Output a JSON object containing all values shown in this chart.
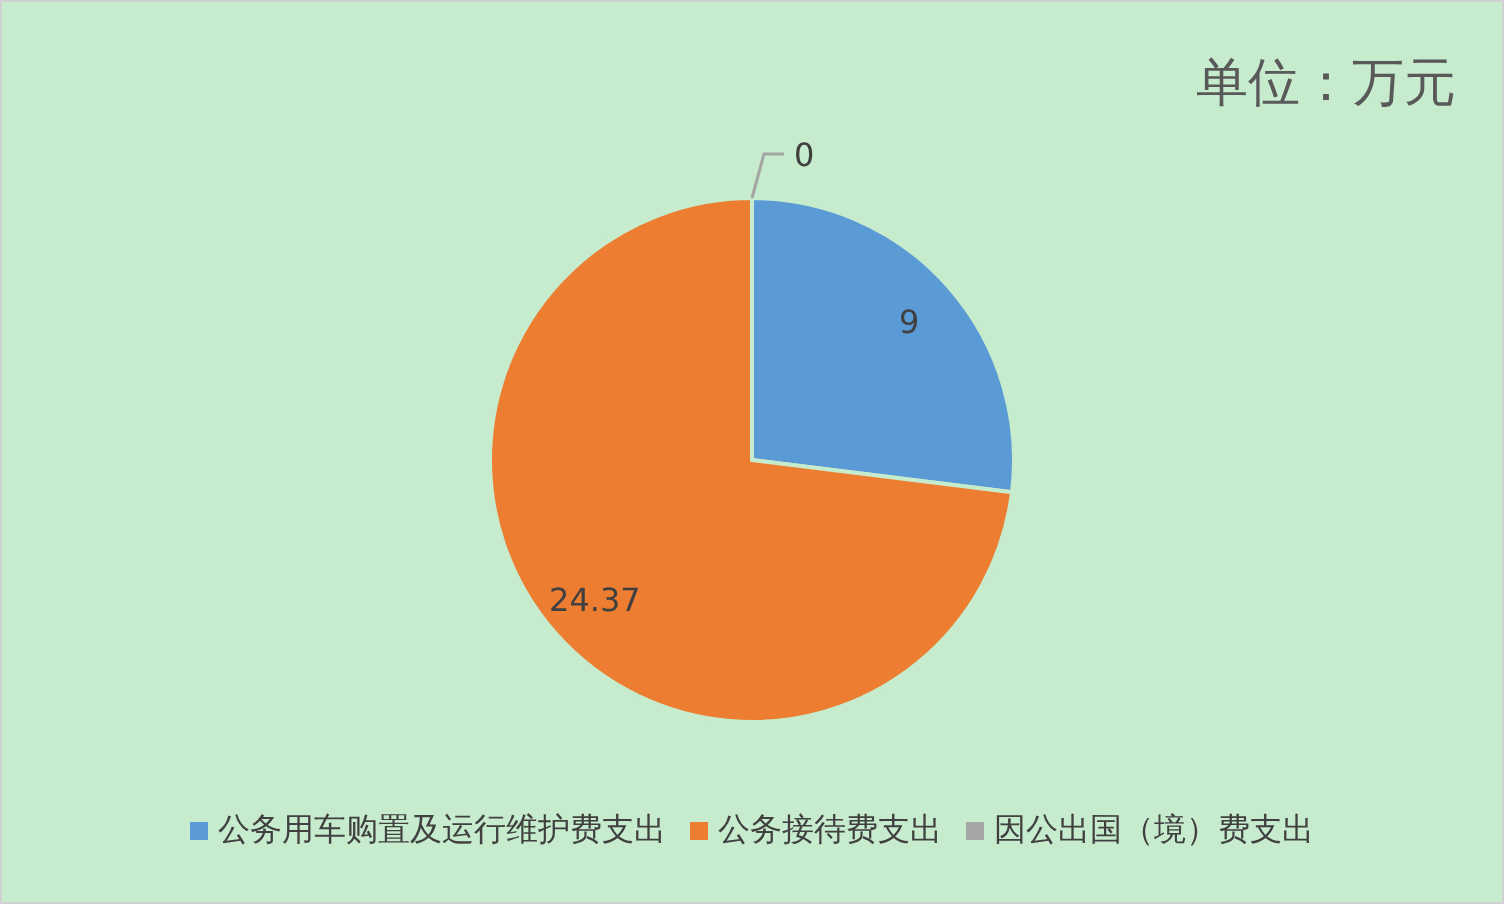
{
  "chart_data": {
    "type": "pie",
    "title": "单位：万元",
    "categories": [
      "公务用车购置及运行维护费支出",
      "公务接待费支出",
      "因公出国（境）费支出"
    ],
    "values": [
      9,
      24.37,
      0
    ],
    "colors": [
      "#5b9bd5",
      "#ed7d31",
      "#a5a5a5"
    ],
    "value_labels": [
      "9",
      "24.37",
      "0"
    ],
    "legend": "bottom"
  }
}
